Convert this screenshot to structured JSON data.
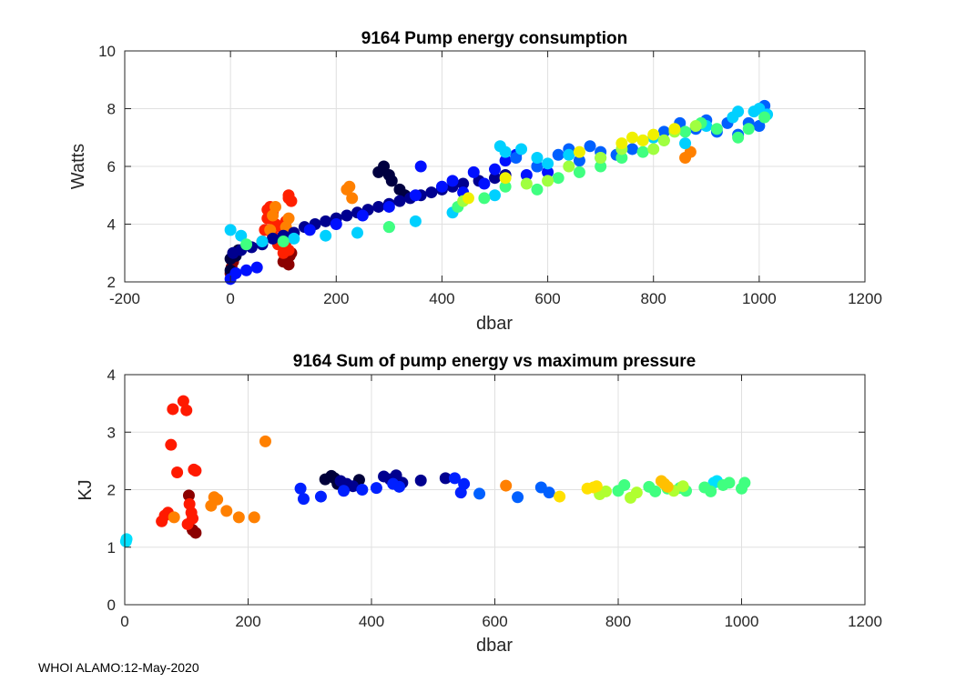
{
  "footer_text": "WHOI ALAMO:12-May-2020",
  "chart_data": [
    {
      "type": "scatter",
      "title": "9164 Pump energy consumption",
      "xlabel": "dbar",
      "ylabel": "Watts",
      "xlim": [
        -200,
        1200
      ],
      "ylim": [
        2,
        10
      ],
      "xticks": [
        -200,
        0,
        200,
        400,
        600,
        800,
        1000,
        1200
      ],
      "yticks": [
        2,
        4,
        6,
        8,
        10
      ],
      "grid": true,
      "colormap": "jet",
      "color_note": "colour varies with profile number (jet colormap); red/orange points are early profiles, blue later, green/yellow latest deep profiles",
      "series": [
        {
          "name": "dark red",
          "color": "#8b0000",
          "x": [
            0,
            2,
            5,
            100,
            105,
            110,
            112,
            115
          ],
          "y": [
            2.3,
            2.5,
            2.7,
            2.7,
            2.8,
            2.6,
            2.9,
            3.0
          ]
        },
        {
          "name": "red",
          "color": "#ff2000",
          "x": [
            60,
            65,
            70,
            70,
            75,
            80,
            80,
            85,
            90,
            95,
            100,
            100,
            105,
            110,
            110,
            115,
            100,
            105,
            110
          ],
          "y": [
            3.4,
            3.8,
            4.2,
            4.5,
            4.6,
            3.6,
            4.4,
            4.0,
            3.3,
            3.9,
            3.2,
            3.6,
            4.1,
            4.9,
            5.0,
            4.8,
            3.0,
            3.4,
            3.1
          ]
        },
        {
          "name": "orange",
          "color": "#ff8000",
          "x": [
            75,
            80,
            85,
            100,
            105,
            110,
            220,
            225,
            230,
            860,
            870
          ],
          "y": [
            3.8,
            4.3,
            4.6,
            3.5,
            3.9,
            4.2,
            5.2,
            5.3,
            4.9,
            6.3,
            6.5
          ]
        },
        {
          "name": "black navy",
          "color": "#000040",
          "x": [
            0,
            0,
            5,
            10,
            15,
            280,
            290,
            300,
            305,
            320,
            330
          ],
          "y": [
            2.4,
            2.8,
            3.0,
            2.9,
            3.1,
            5.8,
            6.0,
            5.7,
            5.5,
            5.2,
            5.0
          ]
        },
        {
          "name": "dark blue",
          "color": "#00008f",
          "x": [
            5,
            20,
            40,
            60,
            80,
            100,
            120,
            140,
            160,
            180,
            200,
            220,
            240,
            260,
            280,
            300,
            320,
            340,
            360,
            380,
            400,
            420,
            440,
            470,
            500,
            520
          ],
          "y": [
            3.0,
            3.1,
            3.2,
            3.3,
            3.5,
            3.6,
            3.7,
            3.9,
            4.0,
            4.1,
            4.2,
            4.3,
            4.4,
            4.5,
            4.6,
            4.7,
            4.8,
            4.9,
            5.0,
            5.1,
            5.2,
            5.3,
            5.4,
            5.5,
            5.6,
            5.7
          ]
        },
        {
          "name": "blue",
          "color": "#0010ff",
          "x": [
            0,
            10,
            30,
            50,
            150,
            200,
            250,
            300,
            350,
            360,
            400,
            420,
            440,
            460,
            480,
            500,
            520,
            540,
            560,
            580,
            600
          ],
          "y": [
            2.1,
            2.3,
            2.4,
            2.5,
            3.8,
            4.0,
            4.3,
            4.6,
            5.0,
            6.0,
            5.3,
            5.5,
            5.1,
            5.8,
            5.4,
            5.9,
            6.2,
            6.4,
            5.7,
            6.0,
            5.8
          ]
        },
        {
          "name": "medium blue",
          "color": "#0060ff",
          "x": [
            540,
            580,
            620,
            640,
            660,
            680,
            700,
            730,
            760,
            820,
            850,
            880,
            900,
            920,
            940,
            960,
            980,
            1000,
            1010
          ],
          "y": [
            6.3,
            6.0,
            6.4,
            6.6,
            6.2,
            6.7,
            6.5,
            6.4,
            6.6,
            7.2,
            7.5,
            7.3,
            7.6,
            7.2,
            7.5,
            7.1,
            7.5,
            7.4,
            8.1
          ]
        },
        {
          "name": "cyan",
          "color": "#00d0ff",
          "x": [
            0,
            20,
            60,
            120,
            180,
            240,
            300,
            350,
            420,
            500,
            510,
            520,
            550,
            580,
            600,
            640,
            700,
            800,
            860,
            900,
            950,
            960,
            990,
            1000,
            1015
          ],
          "y": [
            3.8,
            3.6,
            3.4,
            3.5,
            3.6,
            3.7,
            3.9,
            4.1,
            4.4,
            5.0,
            6.7,
            6.5,
            6.6,
            6.3,
            6.1,
            6.4,
            6.3,
            7.0,
            6.8,
            7.4,
            7.7,
            7.9,
            7.9,
            8.0,
            7.8
          ]
        },
        {
          "name": "green",
          "color": "#40ff80",
          "x": [
            30,
            100,
            300,
            430,
            480,
            520,
            580,
            620,
            660,
            700,
            740,
            780,
            820,
            860,
            890,
            920,
            960,
            980,
            1010
          ],
          "y": [
            3.3,
            3.4,
            3.9,
            4.6,
            4.9,
            5.3,
            5.2,
            5.6,
            5.8,
            6.0,
            6.3,
            6.5,
            6.9,
            7.2,
            7.5,
            7.3,
            7.0,
            7.3,
            7.7
          ]
        },
        {
          "name": "yellow-green",
          "color": "#a0ff40",
          "x": [
            440,
            560,
            600,
            640,
            700,
            740,
            780,
            800,
            820,
            840,
            880
          ],
          "y": [
            4.8,
            5.4,
            5.5,
            6.0,
            6.3,
            6.6,
            6.9,
            6.6,
            6.9,
            7.2,
            7.4
          ]
        },
        {
          "name": "yellow",
          "color": "#f0f000",
          "x": [
            450,
            520,
            660,
            740,
            760,
            780,
            800,
            840
          ],
          "y": [
            4.9,
            5.6,
            6.5,
            6.8,
            7.0,
            6.9,
            7.1,
            7.3
          ]
        }
      ]
    },
    {
      "type": "scatter",
      "title": "9164 Sum of pump energy vs maximum pressure",
      "xlabel": "dbar",
      "ylabel": "KJ",
      "xlim": [
        0,
        1200
      ],
      "ylim": [
        0,
        4
      ],
      "xticks": [
        0,
        200,
        400,
        600,
        800,
        1000,
        1200
      ],
      "yticks": [
        0,
        1,
        2,
        3,
        4
      ],
      "grid": true,
      "colormap": "jet",
      "series": [
        {
          "name": "cyan",
          "color": "#00e0ff",
          "x": [
            2,
            3,
            955,
            960
          ],
          "y": [
            1.1,
            1.14,
            2.12,
            2.15
          ]
        },
        {
          "name": "dark red",
          "color": "#8b0000",
          "x": [
            104,
            110,
            115
          ],
          "y": [
            1.9,
            1.3,
            1.25
          ]
        },
        {
          "name": "red",
          "color": "#ff1a00",
          "x": [
            60,
            65,
            70,
            75,
            78,
            85,
            95,
            100,
            102,
            105,
            108,
            110,
            112,
            115
          ],
          "y": [
            1.45,
            1.55,
            1.6,
            2.78,
            3.4,
            2.3,
            3.54,
            3.38,
            1.4,
            1.75,
            1.6,
            1.5,
            2.35,
            2.33
          ]
        },
        {
          "name": "orange",
          "color": "#ff8000",
          "x": [
            80,
            140,
            145,
            150,
            165,
            185,
            210,
            228,
            618
          ],
          "y": [
            1.52,
            1.72,
            1.87,
            1.83,
            1.63,
            1.52,
            1.52,
            2.84,
            2.07
          ]
        },
        {
          "name": "near black",
          "color": "#00003a",
          "x": [
            325,
            335,
            340,
            345,
            380
          ],
          "y": [
            2.18,
            2.24,
            2.2,
            2.1,
            2.17
          ]
        },
        {
          "name": "dark blue",
          "color": "#00008f",
          "x": [
            350,
            360,
            370,
            420,
            430,
            440,
            450,
            480,
            520
          ],
          "y": [
            2.15,
            2.1,
            2.06,
            2.23,
            2.18,
            2.25,
            2.12,
            2.16,
            2.2
          ]
        },
        {
          "name": "blue",
          "color": "#0020ff",
          "x": [
            285,
            290,
            318,
            355,
            385,
            408,
            435,
            445,
            535,
            545,
            550
          ],
          "y": [
            2.02,
            1.84,
            1.88,
            1.98,
            2.0,
            2.03,
            2.1,
            2.05,
            2.2,
            1.95,
            2.1
          ]
        },
        {
          "name": "medium blue",
          "color": "#0060ff",
          "x": [
            575,
            637,
            675,
            688
          ],
          "y": [
            1.93,
            1.87,
            2.04,
            1.95
          ]
        },
        {
          "name": "green",
          "color": "#40ff80",
          "x": [
            800,
            810,
            850,
            860,
            880,
            900,
            910,
            940,
            950,
            970,
            980,
            1000,
            1005
          ],
          "y": [
            1.98,
            2.08,
            2.05,
            1.97,
            2.02,
            2.03,
            1.98,
            2.04,
            1.97,
            2.08,
            2.12,
            2.02,
            2.12
          ]
        },
        {
          "name": "yellow-green",
          "color": "#b0ff30",
          "x": [
            770,
            780,
            820,
            830,
            890,
            905
          ],
          "y": [
            1.92,
            1.97,
            1.86,
            1.95,
            1.98,
            2.06
          ]
        },
        {
          "name": "yellow",
          "color": "#ffe000",
          "x": [
            705,
            750,
            760,
            765
          ],
          "y": [
            1.88,
            2.02,
            2.04,
            2.06
          ]
        },
        {
          "name": "yellow-orange",
          "color": "#ffc000",
          "x": [
            870,
            875,
            880
          ],
          "y": [
            2.15,
            2.1,
            2.05
          ]
        }
      ]
    }
  ]
}
